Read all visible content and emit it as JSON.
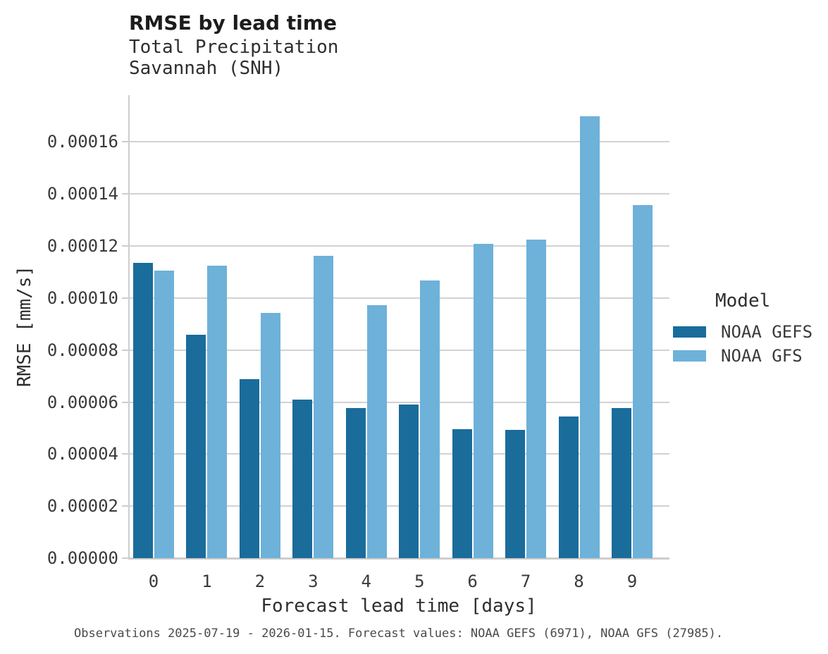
{
  "title": "RMSE by lead time",
  "subtitle_line1": "Total Precipitation",
  "subtitle_line2": "Savannah (SNH)",
  "footer": "Observations 2025-07-19 - 2026-01-15. Forecast values: NOAA GEFS (6971), NOAA GFS (27985).",
  "colors": {
    "gefs": "#1a6c9b",
    "gfs": "#6eb1d9",
    "grid": "#d2d2d2",
    "spine": "#cdcdcd",
    "tick_text": "#3a3a3a"
  },
  "legend": {
    "title": "Model",
    "entries": [
      {
        "label": "NOAA GEFS",
        "color": "#1a6c9b",
        "key": "noaa-gefs"
      },
      {
        "label": "NOAA GFS",
        "color": "#6eb1d9",
        "key": "noaa-gfs"
      }
    ]
  },
  "chart_data": {
    "type": "bar",
    "title": "RMSE by lead time",
    "subtitle": [
      "Total Precipitation",
      "Savannah (SNH)"
    ],
    "xlabel": "Forecast lead time [days]",
    "ylabel": "RMSE [mm/s]",
    "categories": [
      "0",
      "1",
      "2",
      "3",
      "4",
      "5",
      "6",
      "7",
      "8",
      "9"
    ],
    "series": [
      {
        "name": "NOAA GEFS",
        "color": "#1a6c9b",
        "values": [
          0.0001135,
          8.6e-05,
          6.88e-05,
          6.1e-05,
          5.78e-05,
          5.9e-05,
          4.95e-05,
          4.93e-05,
          5.45e-05,
          5.78e-05
        ]
      },
      {
        "name": "NOAA GFS",
        "color": "#6eb1d9",
        "values": [
          0.0001105,
          0.0001125,
          9.42e-05,
          0.0001162,
          9.72e-05,
          0.0001068,
          0.0001208,
          0.0001225,
          0.00017,
          0.0001358
        ]
      }
    ],
    "ylim": [
      0,
      0.000178
    ],
    "yticks": [
      0,
      2e-05,
      4e-05,
      6e-05,
      8e-05,
      0.0001,
      0.00012,
      0.00014,
      0.00016
    ],
    "ytick_labels": [
      "0.00000",
      "0.00002",
      "0.00004",
      "0.00006",
      "0.00008",
      "0.00010",
      "0.00012",
      "0.00014",
      "0.00016"
    ],
    "grid": "horizontal",
    "legend_position": "right",
    "legend_title": "Model"
  }
}
